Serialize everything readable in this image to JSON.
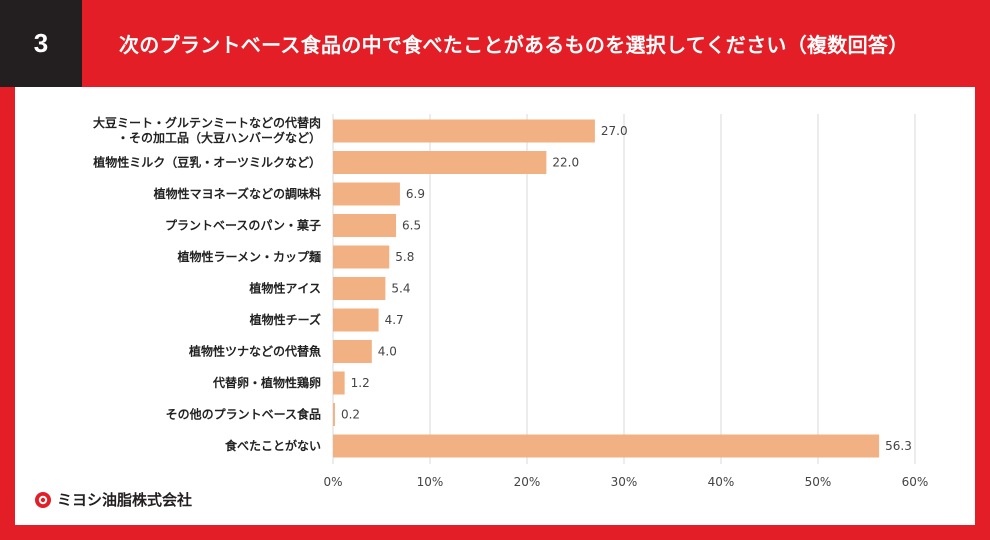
{
  "header": {
    "number": "3",
    "title": "次のプラントベース食品の中で食べたことがあるものを選択してください（複数回答）"
  },
  "footer": {
    "company": "ミヨシ油脂株式会社"
  },
  "colors": {
    "accent": "#e41e26",
    "bar": "#f2b183",
    "dark": "#231f20"
  },
  "chart_data": {
    "type": "bar",
    "orientation": "horizontal",
    "title": "",
    "categories": [
      [
        "大豆ミート・グルテンミートなどの代替肉",
        "・その加工品（大豆ハンバーグなど）"
      ],
      [
        "植物性ミルク（豆乳・オーツミルクなど）"
      ],
      [
        "植物性マヨネーズなどの調味料"
      ],
      [
        "プラントベースのパン・菓子"
      ],
      [
        "植物性ラーメン・カップ麺"
      ],
      [
        "植物性アイス"
      ],
      [
        "植物性チーズ"
      ],
      [
        "植物性ツナなどの代替魚"
      ],
      [
        "代替卵・植物性鶏卵"
      ],
      [
        "その他のプラントベース食品"
      ],
      [
        "食べたことがない"
      ]
    ],
    "values": [
      27.0,
      22.0,
      6.9,
      6.5,
      5.8,
      5.4,
      4.7,
      4.0,
      1.2,
      0.2,
      56.3
    ],
    "value_labels": [
      "27.0",
      "22.0",
      "6.9",
      "6.5",
      "5.8",
      "5.4",
      "4.7",
      "4.0",
      "1.2",
      "0.2",
      "56.3"
    ],
    "xlim": [
      0,
      60
    ],
    "xticks": [
      0,
      10,
      20,
      30,
      40,
      50,
      60
    ],
    "xtick_labels": [
      "0%",
      "10%",
      "20%",
      "30%",
      "40%",
      "50%",
      "60%"
    ],
    "grid": true,
    "xlabel": "",
    "ylabel": ""
  }
}
